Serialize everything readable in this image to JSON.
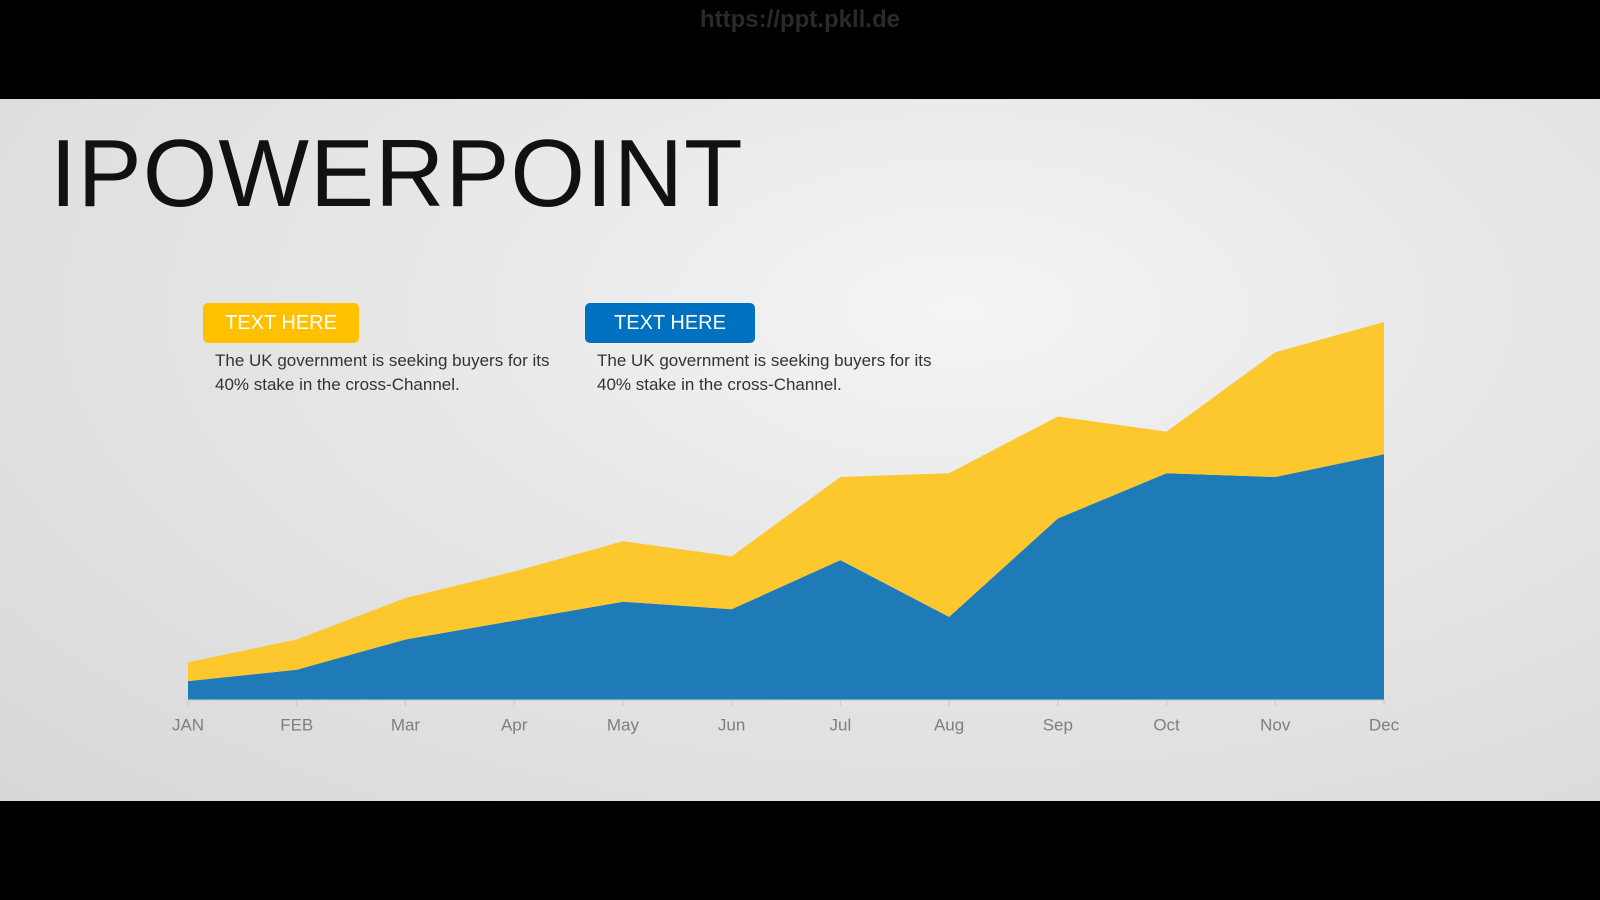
{
  "watermark": "https://ppt.pkll.de",
  "title": "IPOWERPOINT",
  "boxes": [
    {
      "label": "TEXT HERE",
      "color": "#ffc000",
      "text": "The UK government is seeking buyers for its 40% stake in the cross-Channel."
    },
    {
      "label": "TEXT HERE",
      "color": "#0070c0",
      "text": "The UK government is seeking buyers for its 40% stake in the cross-Channel."
    }
  ],
  "chart_data": {
    "type": "area",
    "stacked": true,
    "categories": [
      "JAN",
      "FEB",
      "Mar",
      "Apr",
      "May",
      "Jun",
      "Jul",
      "Aug",
      "Sep",
      "Oct",
      "Nov",
      "Dec"
    ],
    "series": [
      {
        "color": "#1f7bb8",
        "values": [
          5,
          8,
          16,
          21,
          26,
          24,
          37,
          22,
          48,
          60,
          59,
          65
        ]
      },
      {
        "color": "#fdc72e",
        "values": [
          5,
          8,
          11,
          13,
          16,
          14,
          22,
          38,
          27,
          11,
          33,
          35
        ]
      }
    ],
    "ylim": [
      0,
      100
    ]
  }
}
